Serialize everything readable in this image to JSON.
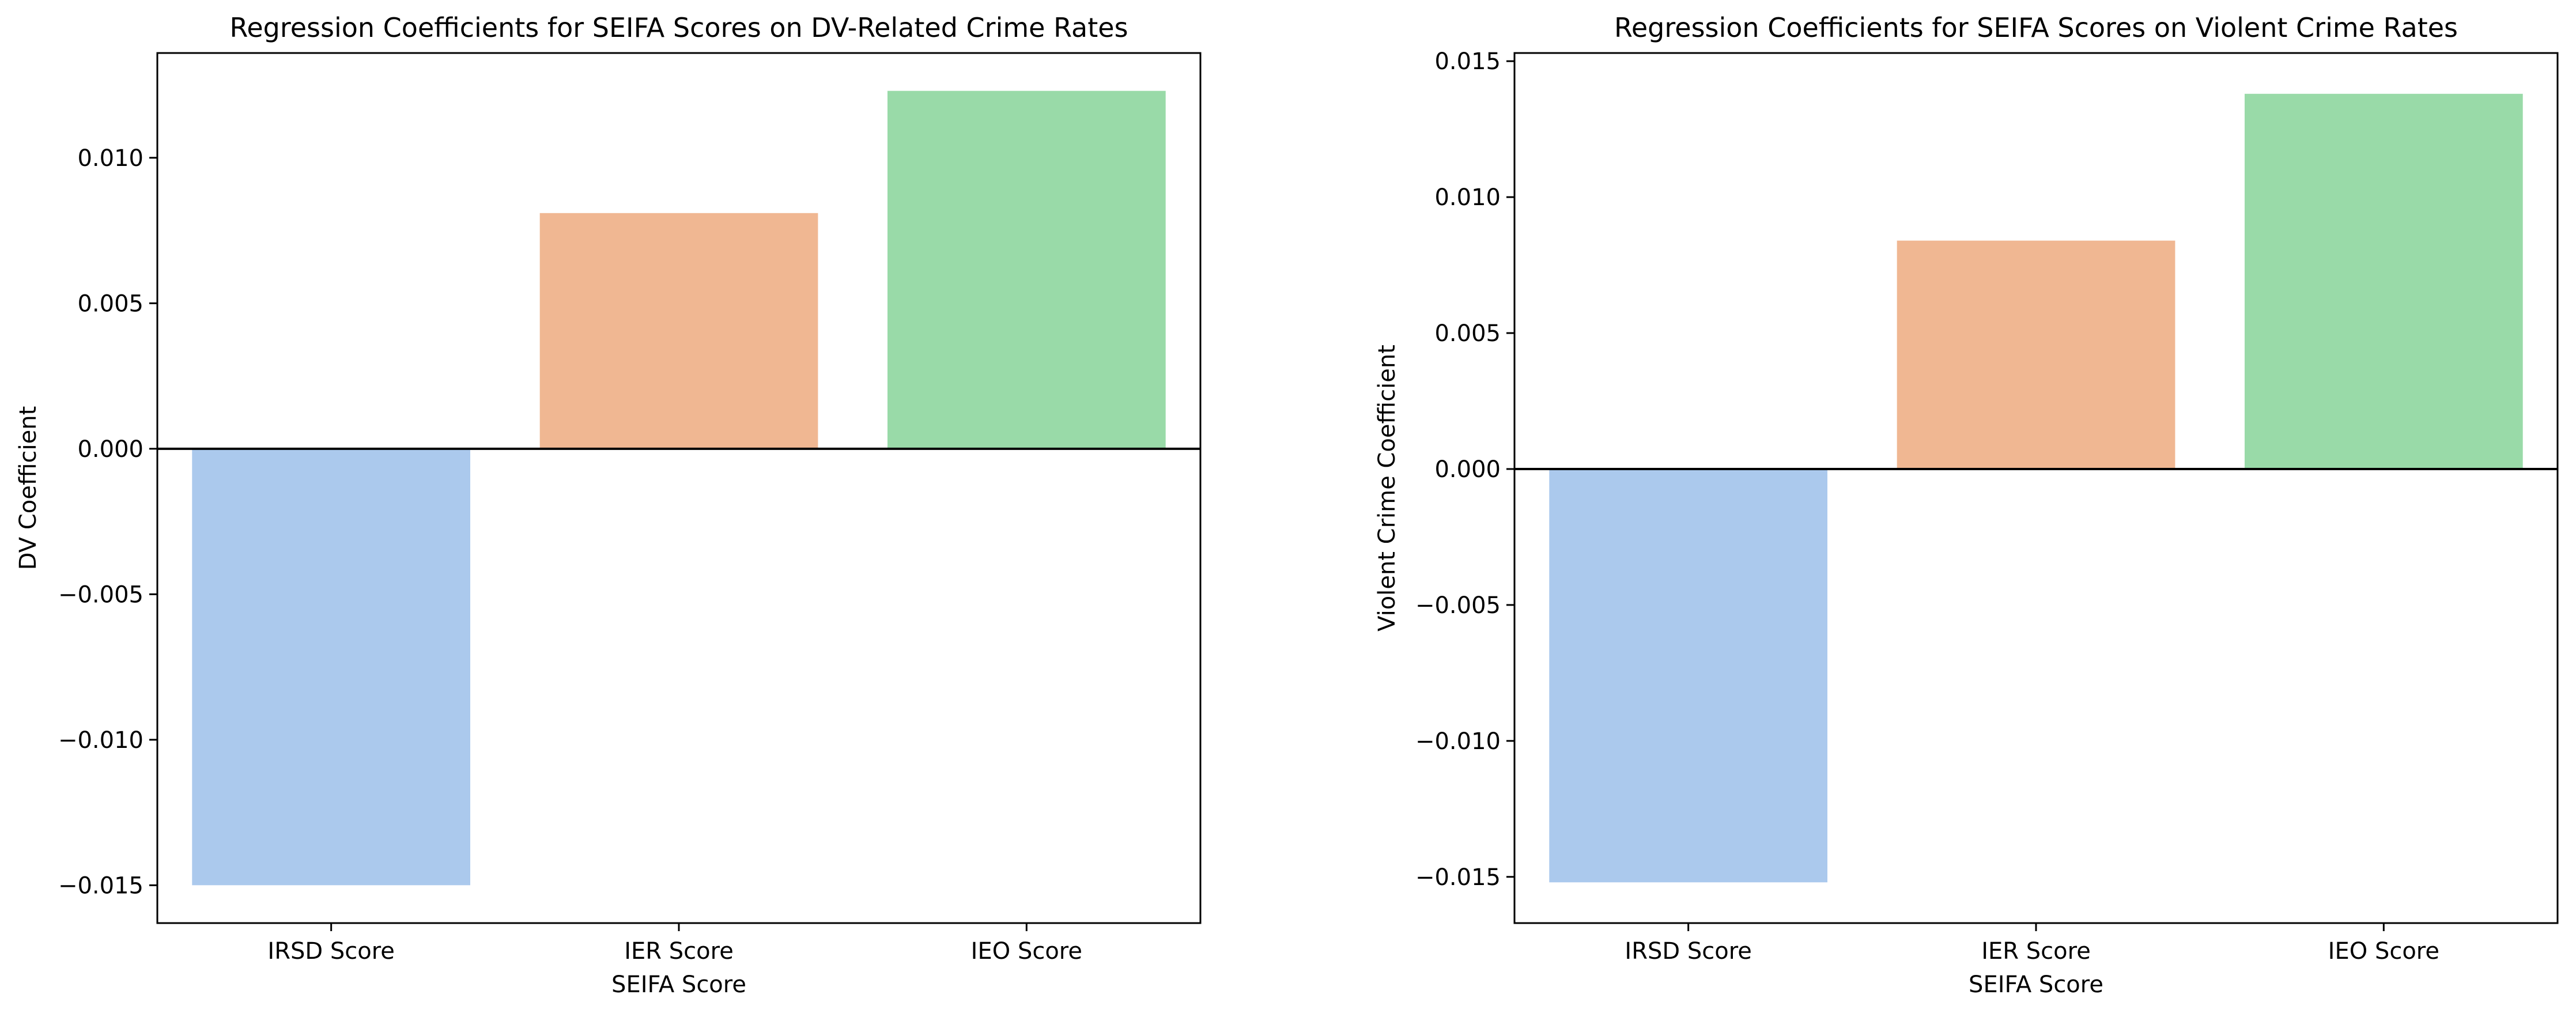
{
  "chart_data": [
    {
      "type": "bar",
      "title": "Regression Coefficients for SEIFA Scores on DV-Related Crime Rates",
      "xlabel": "SEIFA Score",
      "ylabel": "DV Coefficient",
      "categories": [
        "IRSD Score",
        "IER Score",
        "IEO Score"
      ],
      "values": [
        -0.015,
        0.0081,
        0.0123
      ],
      "colors": [
        "#abc9ed",
        "#f0b792",
        "#99daa8"
      ],
      "ylim": [
        -0.0163,
        0.0136
      ],
      "yticks": [
        -0.015,
        -0.01,
        -0.005,
        0.0,
        0.005,
        0.01
      ],
      "ytick_labels": [
        "−0.015",
        "−0.010",
        "−0.005",
        "0.000",
        "0.005",
        "0.010"
      ],
      "zero_line": true,
      "grid": false
    },
    {
      "type": "bar",
      "title": "Regression Coefficients for SEIFA Scores on Violent Crime Rates",
      "xlabel": "SEIFA Score",
      "ylabel": "Violent Crime Coefficient",
      "categories": [
        "IRSD Score",
        "IER Score",
        "IEO Score"
      ],
      "values": [
        -0.0152,
        0.0084,
        0.0138
      ],
      "colors": [
        "#abc9ed",
        "#f0b792",
        "#99daa8"
      ],
      "ylim": [
        -0.0167,
        0.0153
      ],
      "yticks": [
        -0.015,
        -0.01,
        -0.005,
        0.0,
        0.005,
        0.01,
        0.015
      ],
      "ytick_labels": [
        "−0.015",
        "−0.010",
        "−0.005",
        "0.000",
        "0.005",
        "0.010",
        "0.015"
      ],
      "zero_line": true,
      "grid": false
    }
  ]
}
